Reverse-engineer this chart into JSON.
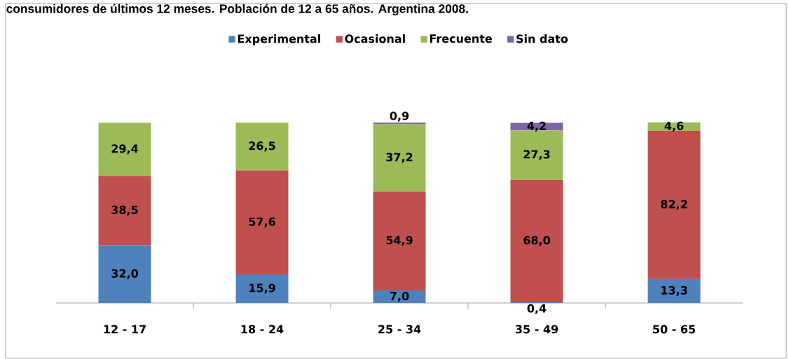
{
  "chart_data": {
    "type": "bar",
    "stacked": true,
    "title": "consumidores de últimos 12 meses. Población de 12 a 65 años. Argentina 2008.",
    "categories": [
      "12 - 17",
      "18 - 24",
      "25 - 34",
      "35 - 49",
      "50 - 65"
    ],
    "legend": "top",
    "data_labels": true,
    "series": [
      {
        "name": "Experimental",
        "color": "#4f81bd",
        "values": [
          32.0,
          15.9,
          7.0,
          0.4,
          13.3
        ],
        "value_labels": [
          "32,0",
          "15,9",
          "7,0",
          "0,4",
          "13,3"
        ]
      },
      {
        "name": "Ocasional",
        "color": "#c0504d",
        "values": [
          38.5,
          57.6,
          54.9,
          68.0,
          82.2
        ],
        "value_labels": [
          "38,5",
          "57,6",
          "54,9",
          "68,0",
          "82,2"
        ]
      },
      {
        "name": "Frecuente",
        "color": "#9bbb59",
        "values": [
          29.4,
          26.5,
          37.2,
          27.3,
          4.6
        ],
        "value_labels": [
          "29,4",
          "26,5",
          "37,2",
          "27,3",
          "4,6"
        ]
      },
      {
        "name": "Sin dato",
        "color": "#8064a2",
        "values": [
          null,
          null,
          0.9,
          4.2,
          null
        ],
        "value_labels": [
          null,
          null,
          "0,9",
          "4,2",
          null
        ]
      }
    ]
  }
}
